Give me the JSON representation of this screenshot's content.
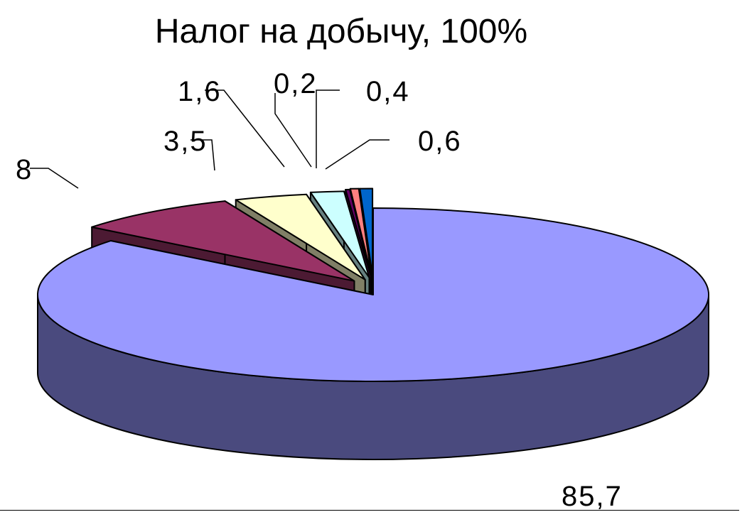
{
  "chart_data": {
    "type": "pie",
    "title": "Налог на добычу, 100%",
    "slices": [
      {
        "label": "85,7",
        "value": 85.7,
        "top_color": "#9999ff",
        "side_color": "#4a4a7e"
      },
      {
        "label": "8",
        "value": 8.0,
        "top_color": "#993366",
        "side_color": "#4c1a33"
      },
      {
        "label": "3,5",
        "value": 3.5,
        "top_color": "#ffffcc",
        "side_color": "#807f66"
      },
      {
        "label": "1,6",
        "value": 1.6,
        "top_color": "#ccffff",
        "side_color": "#668080"
      },
      {
        "label": "0,2",
        "value": 0.2,
        "top_color": "#660066",
        "side_color": "#330033"
      },
      {
        "label": "0,4",
        "value": 0.4,
        "top_color": "#ff8080",
        "side_color": "#804040"
      },
      {
        "label": "0,6",
        "value": 0.6,
        "top_color": "#0066cc",
        "side_color": "#003366"
      }
    ],
    "legend": false,
    "exploded": true,
    "three_d": true
  }
}
